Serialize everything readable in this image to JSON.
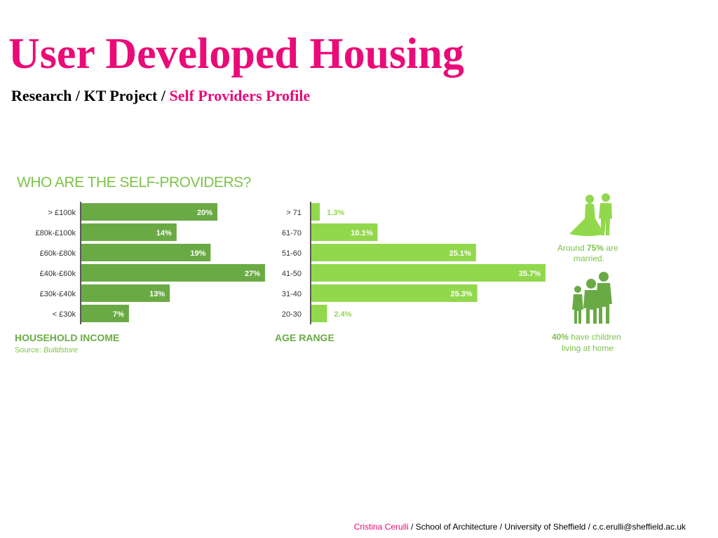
{
  "title": "User Developed Housing",
  "subtitle": {
    "prefix": "Research / KT Project / ",
    "highlight": "Self Providers Profile"
  },
  "footer": {
    "author": "Cristina Cerulli",
    "rest": " / School of Architecture / University of Sheffield / c.c.erulli@sheffield.ac.uk"
  },
  "colors": {
    "accent": "#ea0a78",
    "income_bar": "#6aaa45",
    "age_bar": "#92d84c",
    "caption": "#7ec24a"
  },
  "chart_data": [
    {
      "type": "bar",
      "orientation": "horizontal",
      "title": "WHO ARE THE SELF-PROVIDERS?",
      "xlabel": "HOUSEHOLD INCOME",
      "source_label": "Source: ",
      "source_name": "Buildstore",
      "categories": [
        "> £100k",
        "£80k-£100k",
        "£60k-£80k",
        "£40k-£60k",
        "£30k-£40k",
        "< £30k"
      ],
      "values": [
        20,
        14,
        19,
        27,
        13,
        7
      ],
      "labels": [
        "20%",
        "14%",
        "19%",
        "27%",
        "13%",
        "7%"
      ],
      "unit": "%",
      "xlim": [
        0,
        27
      ]
    },
    {
      "type": "bar",
      "orientation": "horizontal",
      "xlabel": "AGE RANGE",
      "categories": [
        "> 71",
        "61-70",
        "51-60",
        "41-50",
        "31-40",
        "20-30"
      ],
      "values": [
        1.3,
        10.1,
        25.1,
        35.7,
        25.3,
        2.4
      ],
      "labels": [
        "1.3%",
        "10.1%",
        "25.1%",
        "35.7%",
        "25.3%",
        "2.4%"
      ],
      "unit": "%",
      "xlim": [
        0,
        35.7
      ]
    }
  ],
  "facts": {
    "married": {
      "prefix": "Around ",
      "value": "75%",
      "suffix": " are",
      "line2": "married.",
      "icon": "wedding-couple-icon"
    },
    "children": {
      "value": "40%",
      "suffix": " have children",
      "line2": "living at home",
      "icon": "family-icon"
    }
  }
}
